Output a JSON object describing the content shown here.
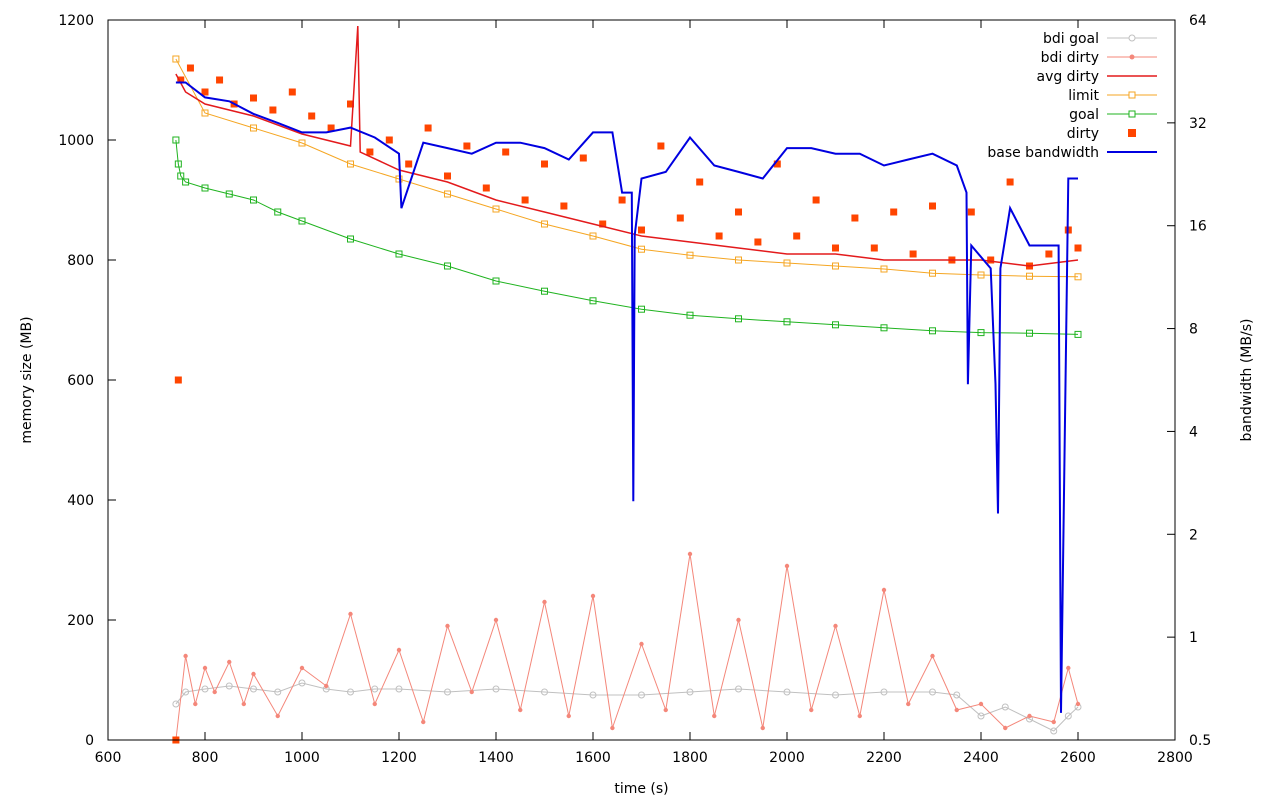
{
  "chart_data": {
    "type": "line",
    "xlabel": "time (s)",
    "ylabel": "memory size (MB)",
    "y2label": "bandwidth (MB/s)",
    "xlim": [
      600,
      2800
    ],
    "ylim": [
      0,
      1200
    ],
    "y2lim": [
      0.5,
      64
    ],
    "y2scale": "log2",
    "xticks": [
      600,
      800,
      1000,
      1200,
      1400,
      1600,
      1800,
      2000,
      2200,
      2400,
      2600,
      2800
    ],
    "yticks": [
      0,
      200,
      400,
      600,
      800,
      1000,
      1200
    ],
    "y2ticks": [
      0.5,
      1,
      2,
      4,
      8,
      16,
      32,
      64
    ],
    "legend_position": "top-right",
    "series": [
      {
        "name": "bdi goal",
        "color": "#c0c0c0",
        "style": "line-circle",
        "x": [
          740,
          760,
          800,
          850,
          900,
          950,
          1000,
          1050,
          1100,
          1150,
          1200,
          1300,
          1400,
          1500,
          1600,
          1700,
          1800,
          1900,
          2000,
          2100,
          2200,
          2300,
          2350,
          2400,
          2450,
          2500,
          2550,
          2580,
          2600
        ],
        "y": [
          60,
          80,
          85,
          90,
          85,
          80,
          95,
          85,
          80,
          85,
          85,
          80,
          85,
          80,
          75,
          75,
          80,
          85,
          80,
          75,
          80,
          80,
          75,
          40,
          55,
          35,
          15,
          40,
          55
        ]
      },
      {
        "name": "bdi dirty",
        "color": "#f4877a",
        "style": "line-dot",
        "x": [
          740,
          760,
          780,
          800,
          820,
          850,
          880,
          900,
          950,
          1000,
          1050,
          1100,
          1150,
          1200,
          1250,
          1300,
          1350,
          1400,
          1450,
          1500,
          1550,
          1600,
          1640,
          1700,
          1750,
          1800,
          1850,
          1900,
          1950,
          2000,
          2050,
          2100,
          2150,
          2200,
          2250,
          2300,
          2350,
          2400,
          2450,
          2500,
          2550,
          2580,
          2600
        ],
        "y": [
          0,
          140,
          60,
          120,
          80,
          130,
          60,
          110,
          40,
          120,
          90,
          210,
          60,
          150,
          30,
          190,
          80,
          200,
          50,
          230,
          40,
          240,
          20,
          160,
          50,
          310,
          40,
          200,
          20,
          290,
          50,
          190,
          40,
          250,
          60,
          140,
          50,
          60,
          20,
          40,
          30,
          120,
          60
        ]
      },
      {
        "name": "avg dirty",
        "color": "#e31a1c",
        "style": "line",
        "x": [
          740,
          760,
          800,
          900,
          1000,
          1100,
          1115,
          1120,
          1200,
          1300,
          1400,
          1500,
          1600,
          1700,
          1800,
          1900,
          2000,
          2100,
          2200,
          2300,
          2400,
          2500,
          2600
        ],
        "y": [
          1110,
          1080,
          1060,
          1040,
          1010,
          990,
          1190,
          980,
          950,
          930,
          900,
          880,
          860,
          840,
          830,
          820,
          810,
          810,
          800,
          800,
          800,
          790,
          800
        ]
      },
      {
        "name": "limit",
        "color": "#f5a623",
        "style": "line-square",
        "x": [
          740,
          800,
          900,
          1000,
          1100,
          1200,
          1300,
          1400,
          1500,
          1600,
          1700,
          1800,
          1900,
          2000,
          2100,
          2200,
          2300,
          2400,
          2500,
          2600
        ],
        "y": [
          1135,
          1045,
          1020,
          995,
          960,
          935,
          910,
          885,
          860,
          840,
          818,
          808,
          800,
          795,
          790,
          785,
          778,
          775,
          773,
          772
        ]
      },
      {
        "name": "goal",
        "color": "#1fb31f",
        "style": "line-square",
        "x": [
          740,
          745,
          750,
          760,
          800,
          850,
          900,
          950,
          1000,
          1100,
          1200,
          1300,
          1400,
          1500,
          1600,
          1700,
          1800,
          1900,
          2000,
          2100,
          2200,
          2300,
          2400,
          2500,
          2600
        ],
        "y": [
          1000,
          960,
          940,
          930,
          920,
          910,
          900,
          880,
          865,
          835,
          810,
          790,
          765,
          748,
          732,
          718,
          708,
          702,
          697,
          692,
          687,
          682,
          679,
          678,
          676
        ]
      },
      {
        "name": "dirty",
        "color": "#ff4500",
        "style": "points-square",
        "x": [
          740,
          745,
          750,
          770,
          800,
          830,
          860,
          900,
          940,
          980,
          1020,
          1060,
          1100,
          1140,
          1180,
          1220,
          1260,
          1300,
          1340,
          1380,
          1420,
          1460,
          1500,
          1540,
          1580,
          1620,
          1660,
          1700,
          1740,
          1780,
          1820,
          1860,
          1900,
          1940,
          1980,
          2020,
          2060,
          2100,
          2140,
          2180,
          2220,
          2260,
          2300,
          2340,
          2380,
          2420,
          2460,
          2500,
          2540,
          2580,
          2600
        ],
        "y": [
          0,
          600,
          1100,
          1120,
          1080,
          1100,
          1060,
          1070,
          1050,
          1080,
          1040,
          1020,
          1060,
          980,
          1000,
          960,
          1020,
          940,
          990,
          920,
          980,
          900,
          960,
          890,
          970,
          860,
          900,
          850,
          990,
          870,
          930,
          840,
          880,
          830,
          960,
          840,
          900,
          820,
          870,
          820,
          880,
          810,
          890,
          800,
          880,
          800,
          930,
          790,
          810,
          850,
          820
        ]
      },
      {
        "name": "base bandwidth",
        "color": "#0000e0",
        "style": "line-thick",
        "axis": "y2",
        "x": [
          740,
          760,
          800,
          850,
          900,
          950,
          1000,
          1050,
          1100,
          1150,
          1200,
          1205,
          1250,
          1300,
          1350,
          1400,
          1450,
          1500,
          1550,
          1600,
          1640,
          1660,
          1680,
          1683,
          1686,
          1700,
          1750,
          1800,
          1850,
          1900,
          1950,
          2000,
          2050,
          2100,
          2150,
          2200,
          2250,
          2300,
          2350,
          2370,
          2373,
          2380,
          2420,
          2430,
          2435,
          2440,
          2460,
          2500,
          2560,
          2565,
          2580,
          2600
        ],
        "y": [
          42,
          42,
          38,
          37,
          34,
          32,
          30,
          30,
          31,
          29,
          26,
          18,
          28,
          27,
          26,
          28,
          28,
          27,
          25,
          30,
          30,
          20,
          20,
          2.5,
          15,
          22,
          23,
          29,
          24,
          23,
          22,
          27,
          27,
          26,
          26,
          24,
          25,
          26,
          24,
          20,
          5.5,
          14,
          12,
          5.5,
          2.3,
          12,
          18,
          14,
          14,
          0.6,
          22,
          22
        ]
      }
    ]
  }
}
